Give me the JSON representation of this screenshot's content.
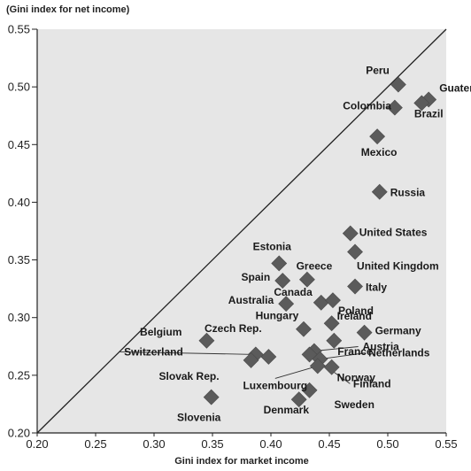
{
  "chart_data": {
    "type": "scatter",
    "title": "",
    "xlabel": "Gini index for market income",
    "ylabel": "(Gini index for net income)",
    "xlim": [
      0.2,
      0.55
    ],
    "ylim": [
      0.2,
      0.55
    ],
    "xticks": [
      "0.20",
      "0.25",
      "0.30",
      "0.35",
      "0.40",
      "0.45",
      "0.50",
      "0.55"
    ],
    "yticks": [
      "0.20",
      "0.25",
      "0.30",
      "0.35",
      "0.40",
      "0.45",
      "0.50",
      "0.55"
    ],
    "grid": false,
    "reference_line": "y = x",
    "marker": "diamond",
    "colors": {
      "background": "#e6e6e6",
      "marker": "#5b5b5b",
      "line": "#222222"
    },
    "points": [
      {
        "label": "Peru",
        "x": 0.509,
        "y": 0.502
      },
      {
        "label": "Guatemala",
        "x": 0.535,
        "y": 0.489
      },
      {
        "label": "Brazil",
        "x": 0.529,
        "y": 0.486
      },
      {
        "label": "Colombia",
        "x": 0.506,
        "y": 0.482
      },
      {
        "label": "Mexico",
        "x": 0.491,
        "y": 0.457
      },
      {
        "label": "Russia",
        "x": 0.493,
        "y": 0.409
      },
      {
        "label": "United States",
        "x": 0.468,
        "y": 0.373
      },
      {
        "label": "United Kingdom",
        "x": 0.472,
        "y": 0.357
      },
      {
        "label": "Estonia",
        "x": 0.407,
        "y": 0.347
      },
      {
        "label": "Greece",
        "x": 0.431,
        "y": 0.333
      },
      {
        "label": "Spain",
        "x": 0.41,
        "y": 0.332
      },
      {
        "label": "Italy",
        "x": 0.472,
        "y": 0.327
      },
      {
        "label": "Canada",
        "x": 0.443,
        "y": 0.313
      },
      {
        "label": "Poland",
        "x": 0.453,
        "y": 0.315
      },
      {
        "label": "Australia",
        "x": 0.413,
        "y": 0.312
      },
      {
        "label": "Ireland",
        "x": 0.452,
        "y": 0.295
      },
      {
        "label": "Hungary",
        "x": 0.428,
        "y": 0.29
      },
      {
        "label": "Germany",
        "x": 0.48,
        "y": 0.287
      },
      {
        "label": "France",
        "x": 0.454,
        "y": 0.28
      },
      {
        "label": "Belgium",
        "x": 0.345,
        "y": 0.28
      },
      {
        "label": "Czech Rep.",
        "x": 0.398,
        "y": 0.266
      },
      {
        "label": "Switzerland",
        "x": 0.387,
        "y": 0.268
      },
      {
        "label": "Slovak Rep.",
        "x": 0.383,
        "y": 0.263
      },
      {
        "label": "Austria",
        "x": 0.437,
        "y": 0.271
      },
      {
        "label": "Netherlands",
        "x": 0.442,
        "y": 0.264
      },
      {
        "label": "Luxembourg",
        "x": 0.44,
        "y": 0.258
      },
      {
        "label": "Norway",
        "x": 0.452,
        "y": 0.257
      },
      {
        "label": "Finland",
        "x": 0.433,
        "y": 0.268
      },
      {
        "label": "Sweden",
        "x": 0.433,
        "y": 0.237
      },
      {
        "label": "Denmark",
        "x": 0.424,
        "y": 0.229
      },
      {
        "label": "Slovenia",
        "x": 0.349,
        "y": 0.231
      }
    ]
  }
}
